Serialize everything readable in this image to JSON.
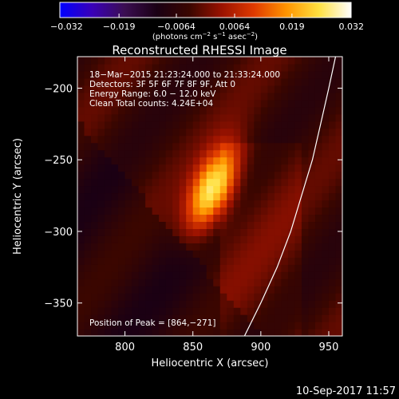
{
  "footer": {
    "timestamp": "10-Sep-2017 11:57"
  },
  "colorbar": {
    "ticks": [
      {
        "label": "−0.032",
        "value": -0.032
      },
      {
        "label": "−0.019",
        "value": -0.019
      },
      {
        "label": "−0.0064",
        "value": -0.0064
      },
      {
        "label": "0.0064",
        "value": 0.0064
      },
      {
        "label": "0.019",
        "value": 0.019
      },
      {
        "label": "0.032",
        "value": 0.032
      }
    ],
    "range": [
      -0.032,
      0.032
    ],
    "colormap": [
      "#0000ff",
      "#3a00b8",
      "#3b0e52",
      "#1a0014",
      "#3a0600",
      "#9a1200",
      "#e03a00",
      "#ff9400",
      "#ffe040",
      "#ffffff"
    ],
    "units": {
      "pre": "(photons cm",
      "e1": "−2",
      "mid": " s",
      "e2": "−1",
      "mid2": " asec",
      "e3": "−2",
      "post": ")"
    }
  },
  "chart_data": {
    "type": "heatmap",
    "title": "Reconstructed RHESSI Image",
    "xlabel": "Heliocentric X (arcsec)",
    "ylabel": "Heliocentric Y (arcsec)",
    "xlim": [
      765,
      960
    ],
    "ylim": [
      -373,
      -178
    ],
    "xticks": [
      800,
      850,
      900,
      950
    ],
    "yticks": [
      -200,
      -250,
      -300,
      -350
    ],
    "annotations": [
      "18−Mar−2015 21:23:24.000 to 21:33:24.000",
      "Detectors: 3F 5F 6F 7F 8F 9F, Att 0",
      "Energy Range: 6.0 − 12.0 keV",
      "Clean     Total counts: 4.24E+04"
    ],
    "peak_label": "Position of Peak = [864,−271]",
    "peak": {
      "x": 864,
      "y": -271,
      "value": 0.032
    },
    "limb": [
      {
        "x": 888,
        "y": -373
      },
      {
        "x": 900,
        "y": -350
      },
      {
        "x": 912,
        "y": -325
      },
      {
        "x": 922,
        "y": -300
      },
      {
        "x": 930,
        "y": -275
      },
      {
        "x": 938,
        "y": -250
      },
      {
        "x": 944,
        "y": -225
      },
      {
        "x": 950,
        "y": -200
      },
      {
        "x": 955,
        "y": -178
      }
    ],
    "grid": false
  }
}
